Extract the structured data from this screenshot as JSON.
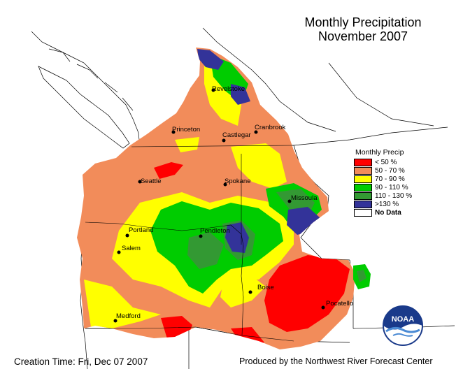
{
  "title": {
    "line1": "Monthly Precipitation",
    "line2": "November 2007"
  },
  "legend": {
    "title": "Monthly Precip",
    "items": [
      {
        "label": "< 50 %",
        "color": "#ff0000"
      },
      {
        "label": "50 - 70 %",
        "color": "#f28c5a"
      },
      {
        "label": "70 - 90 %",
        "color": "#ffff00"
      },
      {
        "label": "90 - 110 %",
        "color": "#00cc00"
      },
      {
        "label": "110 - 130 %",
        "color": "#339933"
      },
      {
        "label": ">130 %",
        "color": "#333399"
      },
      {
        "label": "No Data",
        "color": "#ffffff"
      }
    ]
  },
  "cities": [
    "Revelstoke",
    "Princeton",
    "Castlegar",
    "Cranbrook",
    "Seattle",
    "Spokane",
    "Missoula",
    "Portland",
    "Pendleton",
    "Salem",
    "Boise",
    "Pocatello",
    "Medford"
  ],
  "footer": {
    "creation": "Creation Time: Fri, Dec 07 2007",
    "producer": "Produced by the Northwest River Forecast Center"
  },
  "logo": {
    "text": "NOAA",
    "icon": "noaa-logo-icon"
  }
}
